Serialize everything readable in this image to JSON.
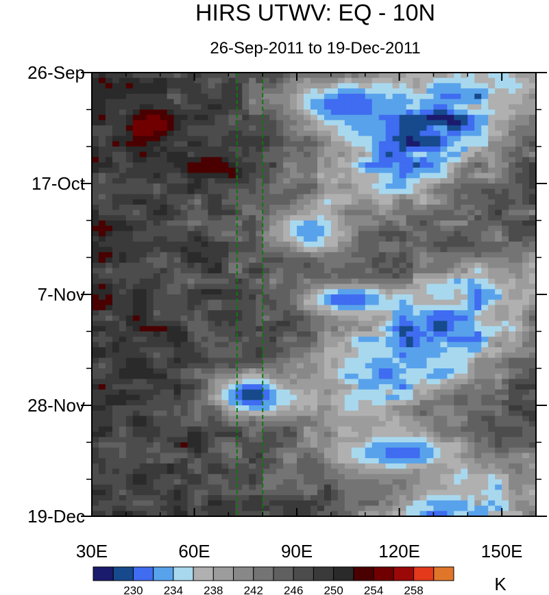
{
  "chart_data": {
    "type": "heatmap",
    "title": "HIRS UTWV: EQ - 10N",
    "subtitle": "26-Sep-2011 to 19-Dec-2011",
    "x_axis": {
      "range": [
        30,
        160
      ],
      "ticks": [
        30,
        60,
        90,
        120,
        150
      ],
      "tick_labels": [
        "30E",
        "60E",
        "90E",
        "120E",
        "150E"
      ],
      "minor_step": 10
    },
    "y_axis": {
      "tick_labels": [
        "26-Sep",
        "17-Oct",
        "7-Nov",
        "28-Nov",
        "19-Dec"
      ],
      "days_from_start": [
        0,
        21,
        42,
        63,
        84
      ],
      "range_days": [
        0,
        84
      ],
      "minor_step_days": 7,
      "direction": "time increases downward"
    },
    "reference_lines": [
      {
        "lon": 72.5,
        "style": "dashed",
        "color": "#0b7a0b"
      },
      {
        "lon": 80,
        "style": "dashed",
        "color": "#0b7a0b"
      }
    ],
    "colorbar": {
      "unit": "K",
      "levels": [
        228,
        230,
        232,
        234,
        236,
        238,
        240,
        242,
        244,
        246,
        248,
        250,
        252,
        254,
        256,
        258,
        260
      ],
      "labels": [
        "230",
        "234",
        "238",
        "242",
        "246",
        "250",
        "254",
        "258"
      ],
      "colors": [
        "#1b1b6e",
        "#174a8c",
        "#3f6cf0",
        "#58a2ec",
        "#a8d8ee",
        "#b0b0b0",
        "#9c9c9c",
        "#888888",
        "#747474",
        "#606060",
        "#4c4c4c",
        "#3a3a3a",
        "#2a2a2a",
        "#4a0000",
        "#700000",
        "#9a0808",
        "#e23a1a",
        "#e0762a"
      ]
    },
    "features": [
      {
        "lon": 48,
        "day": 10,
        "peak": 256,
        "width": 8,
        "height": 3,
        "note": "warm maximum west of reference lines"
      },
      {
        "lon": 65,
        "day": 18,
        "peak": 254,
        "width": 12,
        "height": 2.5
      },
      {
        "lon": 105,
        "day": 6,
        "peak": 230,
        "width": 18,
        "height": 5,
        "note": "cold moist band"
      },
      {
        "lon": 94,
        "day": 30,
        "peak": 232,
        "width": 10,
        "height": 4
      },
      {
        "lon": 105,
        "day": 43,
        "peak": 230,
        "width": 14,
        "height": 3
      },
      {
        "lon": 77,
        "day": 61,
        "peak": 229,
        "width": 13,
        "height": 4
      },
      {
        "lon": 120,
        "day": 72,
        "peak": 231,
        "width": 20,
        "height": 4
      }
    ]
  }
}
